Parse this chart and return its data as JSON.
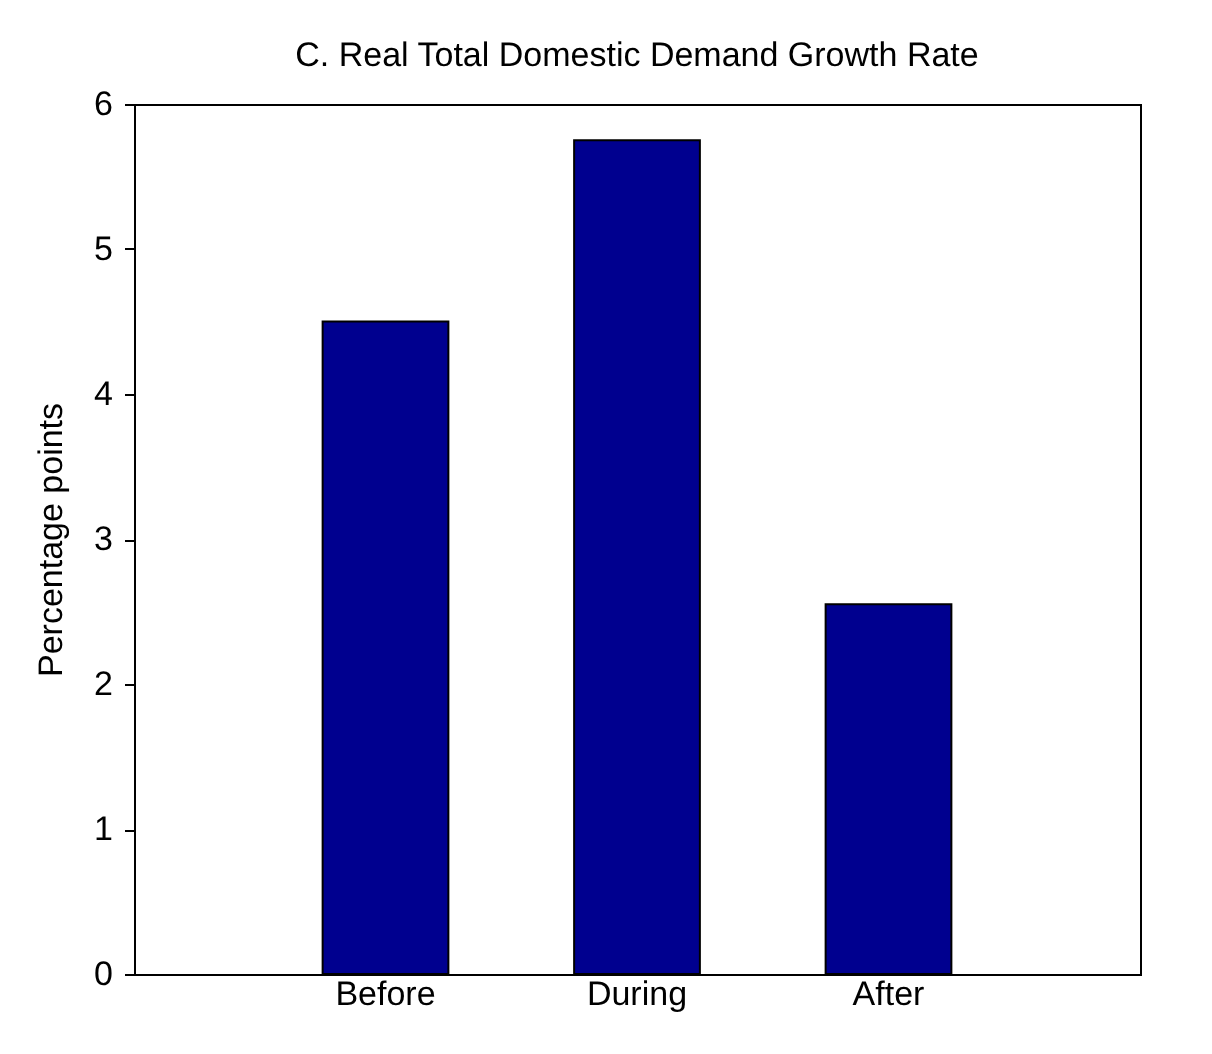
{
  "chart_data": {
    "type": "bar",
    "title": "C.  Real Total Domestic Demand Growth Rate",
    "ylabel": "Percentage points",
    "categories": [
      "Before",
      "During",
      "After"
    ],
    "values": [
      4.5,
      5.75,
      2.55
    ],
    "color": "#00008f",
    "ylim": [
      0,
      6
    ],
    "yticks": [
      0,
      1,
      2,
      3,
      4,
      5,
      6
    ],
    "grid": false
  }
}
